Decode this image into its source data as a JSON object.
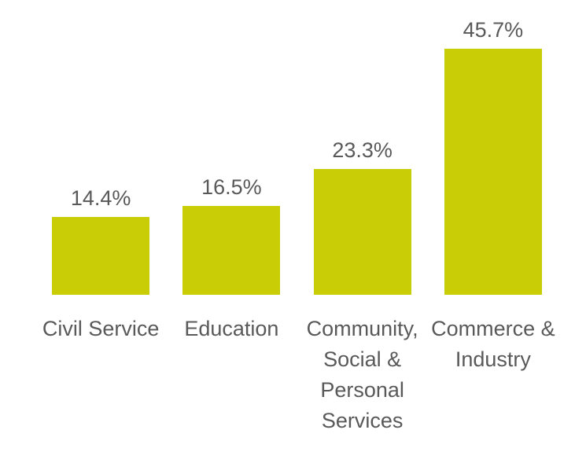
{
  "chart_data": {
    "type": "bar",
    "categories": [
      "Civil Service",
      "Education",
      "Community, Social & Personal Services",
      "Commerce & Industry"
    ],
    "values": [
      14.4,
      16.5,
      23.3,
      45.7
    ],
    "value_labels": [
      "14.4%",
      "16.5%",
      "23.3%",
      "45.7%"
    ],
    "title": "",
    "xlabel": "",
    "ylabel": "",
    "ylim": [
      0,
      50
    ],
    "grid": false,
    "legend": false,
    "axes_visible": false,
    "bar_color": "#C9CD06",
    "label_color": "#595959",
    "background_color": "#FFFFFF",
    "legend_position": "none"
  }
}
